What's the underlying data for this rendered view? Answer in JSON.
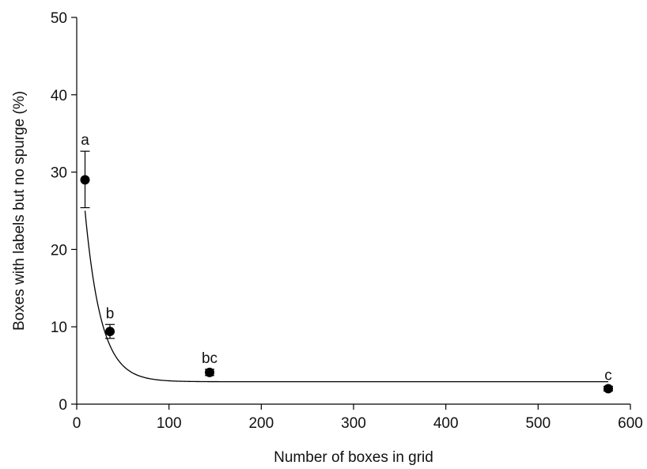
{
  "chart_data": {
    "type": "scatter",
    "title": "",
    "xlabel": "Number of boxes in grid",
    "ylabel": "Boxes with labels but no spurge (%)",
    "xlim": [
      0,
      600
    ],
    "ylim": [
      0,
      50
    ],
    "x_ticks": [
      "0",
      "100",
      "200",
      "300",
      "400",
      "500",
      "600"
    ],
    "y_ticks": [
      "0",
      "10",
      "20",
      "30",
      "40",
      "50"
    ],
    "grid": false,
    "legend": "none",
    "marker_color": "#000000",
    "points": [
      {
        "x": 9,
        "y": 29.0,
        "err_low": 25.4,
        "err_high": 32.7,
        "label": "a"
      },
      {
        "x": 36,
        "y": 9.4,
        "err_low": 8.5,
        "err_high": 10.3,
        "label": "b"
      },
      {
        "x": 144,
        "y": 4.1,
        "err_low": 3.7,
        "err_high": 4.5,
        "label": "bc"
      },
      {
        "x": 576,
        "y": 2.0,
        "err_low": 1.7,
        "err_high": 2.3,
        "label": "c"
      }
    ],
    "fit_curve": {
      "type": "exponential-decay",
      "asymptote": 2.9,
      "amplitude": 37.1,
      "rate": 0.0575
    }
  }
}
